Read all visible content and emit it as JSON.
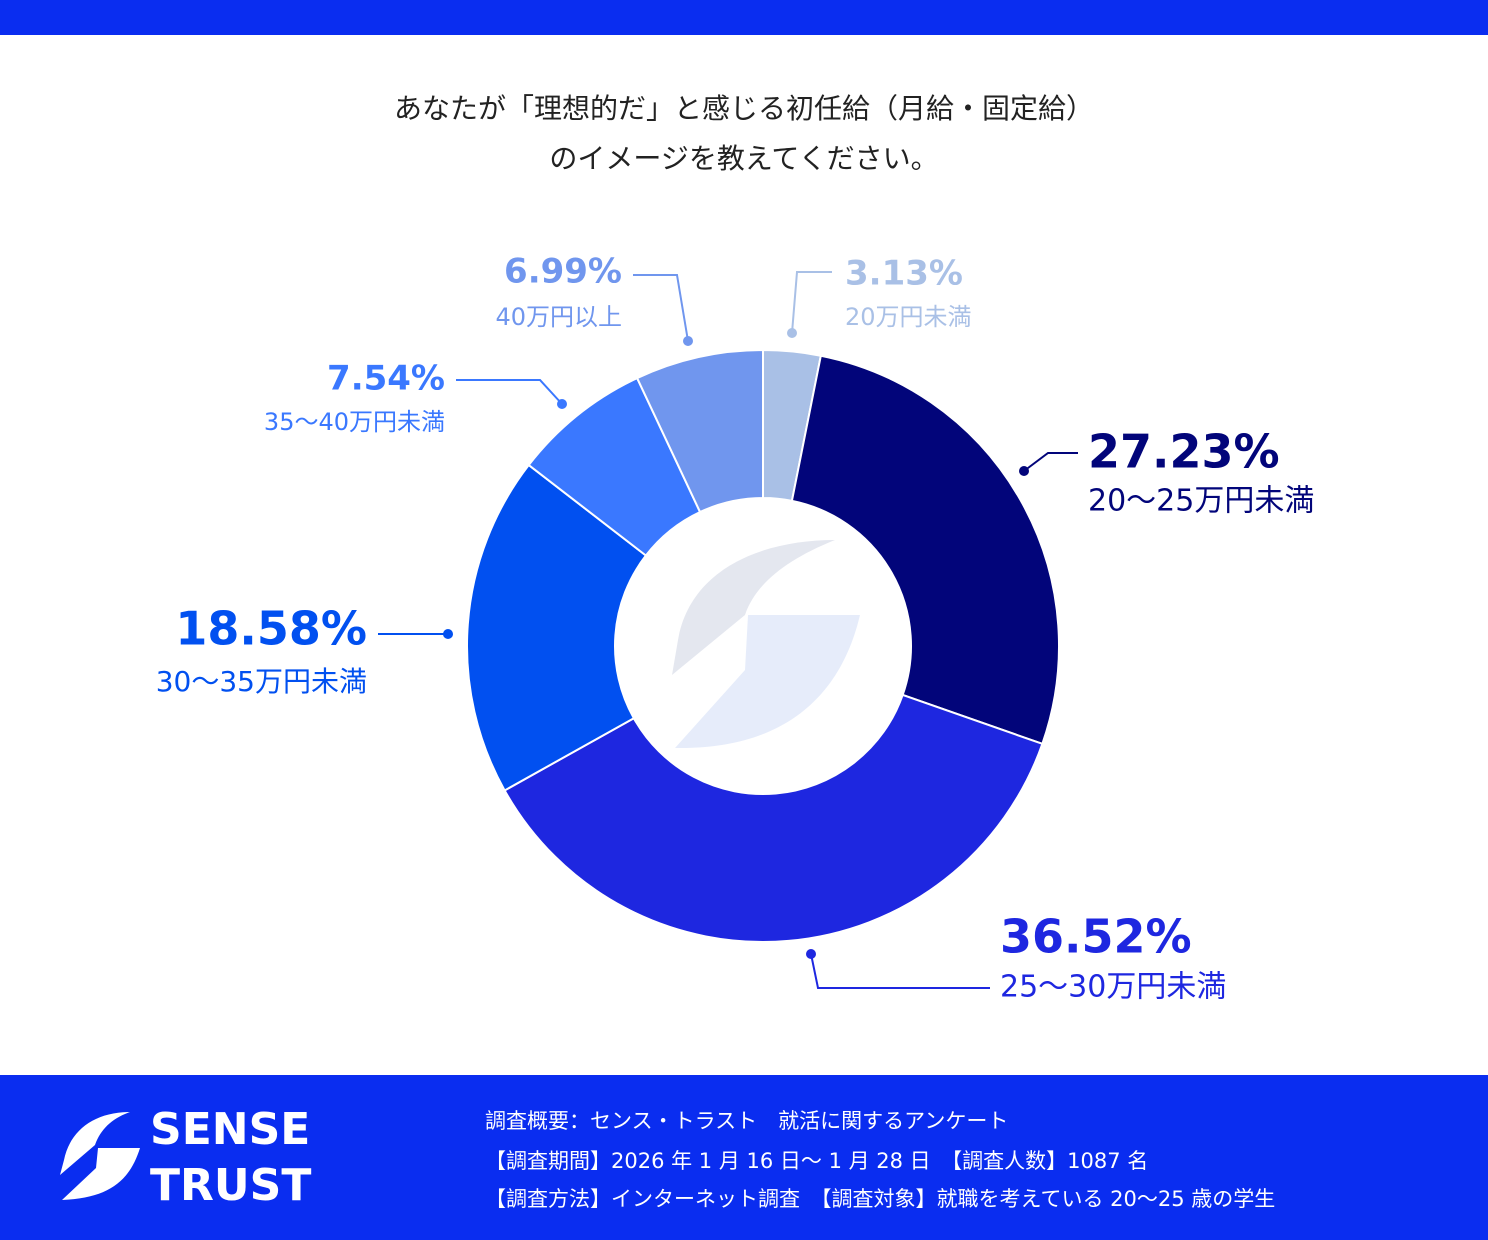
{
  "chart_data": {
    "type": "donut",
    "title": [
      "あなたが「理想的だ」と感じる初任給（月給・固定給）",
      "のイメージを教えてください。"
    ],
    "categories": [
      "20万円未満",
      "20～25万円未満",
      "25～30万円未満",
      "30～35万円未満",
      "35～40万円未満",
      "40万円以上"
    ],
    "values": [
      3.13,
      27.23,
      36.52,
      18.58,
      7.54,
      6.99
    ],
    "value_labels": [
      "3.13%",
      "27.23%",
      "36.52%",
      "18.58%",
      "7.54%",
      "6.99%"
    ],
    "colors": [
      "#a9c0e6",
      "#02057a",
      "#1e27e0",
      "#0150f0",
      "#3a78ff",
      "#7096ee"
    ]
  },
  "footer": {
    "brand": [
      "SENSE",
      "TRUST"
    ],
    "notes": [
      "調査概要：センス・トラスト　就活に関するアンケート",
      "【調査期間】2026 年 1 月 16 日～ 1 月 28 日　【調査人数】1087 名",
      "【調査方法】インターネット調査　【調査対象】就職を考えている 20～25 歳の学生"
    ]
  }
}
